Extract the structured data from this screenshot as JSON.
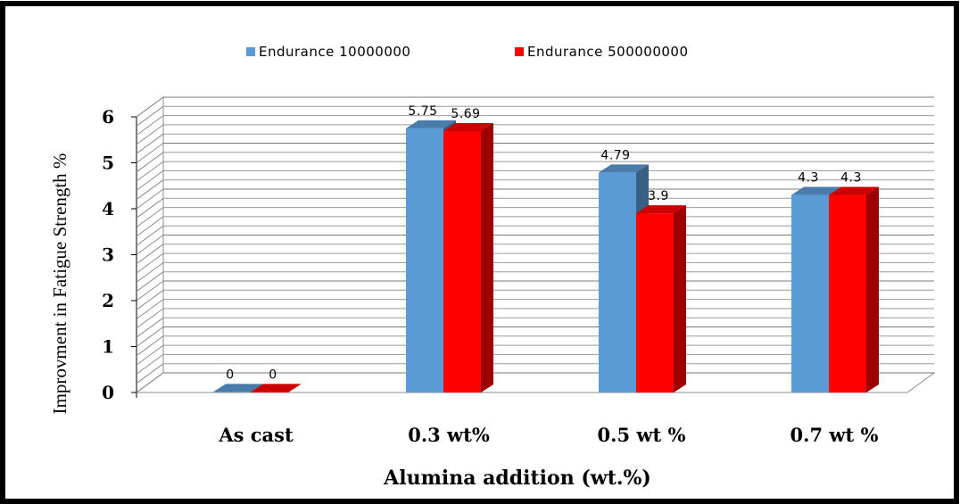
{
  "chart_data": {
    "type": "bar",
    "categories": [
      "As cast",
      "0.3 wt%",
      "0.5 wt %",
      "0.7 wt %"
    ],
    "series": [
      {
        "name": "Endurance 10000000",
        "values": [
          0,
          5.75,
          4.79,
          4.3
        ],
        "labels": [
          "0",
          "5.75",
          "4.79",
          "4.3"
        ],
        "color": "#5B9BD5"
      },
      {
        "name": "Endurance 500000000",
        "values": [
          0,
          5.69,
          3.9,
          4.3
        ],
        "labels": [
          "0",
          "5.69",
          "3.9",
          "4.3"
        ],
        "color": "#FF0000"
      }
    ],
    "yticks": [
      "0",
      "1",
      "2",
      "3",
      "4",
      "5",
      "6"
    ],
    "ylim": [
      0,
      6
    ],
    "xlabel": "Alumina addition (wt.%)",
    "ylabel": "Improvment in Fatigue Strength %",
    "grid": true,
    "legend_position": "top",
    "style": "3d-clustered-column"
  }
}
